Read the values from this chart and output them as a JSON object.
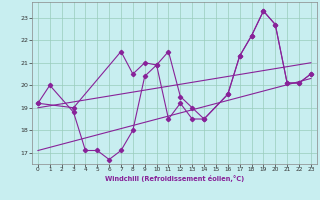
{
  "xlabel": "Windchill (Refroidissement éolien,°C)",
  "background_color": "#c8eef0",
  "line_color": "#882299",
  "grid_color": "#99ccbb",
  "xlim": [
    -0.5,
    23.5
  ],
  "ylim": [
    16.5,
    23.7
  ],
  "xticks": [
    0,
    1,
    2,
    3,
    4,
    5,
    6,
    7,
    8,
    9,
    10,
    11,
    12,
    13,
    14,
    15,
    16,
    17,
    18,
    19,
    20,
    21,
    22,
    23
  ],
  "yticks": [
    17,
    18,
    19,
    20,
    21,
    22,
    23
  ],
  "series1_x": [
    0,
    1,
    3,
    4,
    5,
    6,
    7,
    8,
    9,
    10,
    11,
    12,
    13,
    14,
    16,
    17,
    18,
    19,
    20,
    21,
    22,
    23
  ],
  "series1_y": [
    19.2,
    20.0,
    18.8,
    17.1,
    17.1,
    16.7,
    17.1,
    18.0,
    20.4,
    20.9,
    18.5,
    19.2,
    18.5,
    18.5,
    19.6,
    21.3,
    22.2,
    23.3,
    22.7,
    20.1,
    20.1,
    20.5
  ],
  "series2_x": [
    0,
    3,
    7,
    8,
    9,
    10,
    11,
    12,
    13,
    14,
    16,
    17,
    18,
    19,
    20,
    21,
    22,
    23
  ],
  "series2_y": [
    19.2,
    19.0,
    21.5,
    20.5,
    21.0,
    20.9,
    21.5,
    19.5,
    19.0,
    18.5,
    19.6,
    21.3,
    22.2,
    23.3,
    22.7,
    20.1,
    20.1,
    20.5
  ],
  "trend1_x": [
    0,
    23
  ],
  "trend1_y": [
    19.0,
    21.0
  ],
  "trend2_x": [
    0,
    23
  ],
  "trend2_y": [
    17.1,
    20.3
  ]
}
